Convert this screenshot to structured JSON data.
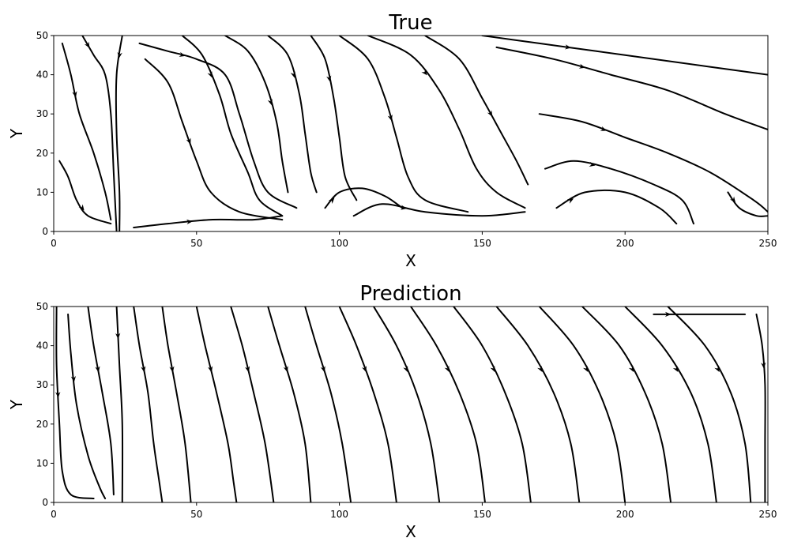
{
  "chart_data": [
    {
      "type": "streamplot",
      "title": "True",
      "xlabel": "X",
      "ylabel": "Y",
      "xlim": [
        0,
        250
      ],
      "ylim": [
        0,
        50
      ],
      "xticks": [
        0,
        50,
        100,
        150,
        200,
        250
      ],
      "yticks": [
        0,
        10,
        20,
        30,
        40,
        50
      ],
      "line_color": "#000000",
      "streamlines": [
        {
          "points": [
            [
              2,
              18
            ],
            [
              5,
              14
            ],
            [
              8,
              8
            ],
            [
              12,
              4
            ],
            [
              20,
              2
            ]
          ],
          "arrow_at": 3
        },
        {
          "points": [
            [
              3,
              48
            ],
            [
              6,
              40
            ],
            [
              9,
              30
            ],
            [
              14,
              20
            ],
            [
              18,
              10
            ],
            [
              20,
              3
            ]
          ],
          "arrow_at": 2
        },
        {
          "points": [
            [
              10,
              50
            ],
            [
              14,
              45
            ],
            [
              18,
              40
            ],
            [
              20,
              30
            ],
            [
              21,
              15
            ],
            [
              22,
              0
            ]
          ],
          "arrow_at": 1
        },
        {
          "points": [
            [
              24,
              50
            ],
            [
              22,
              40
            ],
            [
              22,
              25
            ],
            [
              23,
              10
            ],
            [
              23,
              0
            ]
          ],
          "arrow_at": 1
        },
        {
          "points": [
            [
              30,
              48
            ],
            [
              40,
              46
            ],
            [
              50,
              44
            ],
            [
              60,
              40
            ],
            [
              65,
              30
            ],
            [
              70,
              18
            ],
            [
              75,
              10
            ],
            [
              85,
              6
            ]
          ],
          "arrow_at": 2
        },
        {
          "points": [
            [
              32,
              44
            ],
            [
              40,
              38
            ],
            [
              45,
              28
            ],
            [
              50,
              18
            ],
            [
              55,
              10
            ],
            [
              65,
              5
            ],
            [
              80,
              3
            ]
          ],
          "arrow_at": 3
        },
        {
          "points": [
            [
              45,
              50
            ],
            [
              52,
              45
            ],
            [
              58,
              35
            ],
            [
              62,
              25
            ],
            [
              68,
              15
            ],
            [
              72,
              8
            ],
            [
              80,
              4
            ]
          ],
          "arrow_at": 2
        },
        {
          "points": [
            [
              60,
              50
            ],
            [
              68,
              46
            ],
            [
              74,
              38
            ],
            [
              78,
              28
            ],
            [
              80,
              18
            ],
            [
              82,
              10
            ]
          ],
          "arrow_at": 3
        },
        {
          "points": [
            [
              75,
              50
            ],
            [
              82,
              45
            ],
            [
              86,
              35
            ],
            [
              88,
              25
            ],
            [
              90,
              15
            ],
            [
              92,
              10
            ]
          ],
          "arrow_at": 2
        },
        {
          "points": [
            [
              90,
              50
            ],
            [
              95,
              44
            ],
            [
              98,
              34
            ],
            [
              100,
              24
            ],
            [
              102,
              14
            ],
            [
              106,
              8
            ]
          ],
          "arrow_at": 2
        },
        {
          "points": [
            [
              100,
              50
            ],
            [
              110,
              44
            ],
            [
              116,
              34
            ],
            [
              120,
              24
            ],
            [
              124,
              14
            ],
            [
              130,
              8
            ],
            [
              145,
              5
            ]
          ],
          "arrow_at": 3
        },
        {
          "points": [
            [
              110,
              50
            ],
            [
              125,
              45
            ],
            [
              135,
              36
            ],
            [
              142,
              26
            ],
            [
              148,
              16
            ],
            [
              155,
              10
            ],
            [
              165,
              6
            ]
          ],
          "arrow_at": 2
        },
        {
          "points": [
            [
              130,
              50
            ],
            [
              142,
              44
            ],
            [
              150,
              34
            ],
            [
              156,
              26
            ],
            [
              162,
              18
            ],
            [
              166,
              12
            ]
          ],
          "arrow_at": 3
        },
        {
          "points": [
            [
              150,
              50
            ],
            [
              170,
              48
            ],
            [
              190,
              46
            ],
            [
              210,
              44
            ],
            [
              230,
              42
            ],
            [
              250,
              40
            ]
          ],
          "arrow_at": 2
        },
        {
          "points": [
            [
              155,
              47
            ],
            [
              175,
              44
            ],
            [
              195,
              40
            ],
            [
              215,
              36
            ],
            [
              235,
              30
            ],
            [
              250,
              26
            ]
          ],
          "arrow_at": 2
        },
        {
          "points": [
            [
              170,
              30
            ],
            [
              185,
              28
            ],
            [
              200,
              24
            ],
            [
              215,
              20
            ],
            [
              230,
              15
            ],
            [
              245,
              8
            ],
            [
              250,
              5
            ]
          ],
          "arrow_at": 2
        },
        {
          "points": [
            [
              172,
              16
            ],
            [
              182,
              18
            ],
            [
              195,
              16
            ],
            [
              210,
              12
            ],
            [
              220,
              8
            ],
            [
              224,
              2
            ]
          ],
          "arrow_at": 2
        },
        {
          "points": [
            [
              176,
              6
            ],
            [
              186,
              10
            ],
            [
              200,
              10
            ],
            [
              212,
              6
            ],
            [
              218,
              2
            ]
          ],
          "arrow_at": 1
        },
        {
          "points": [
            [
              105,
              4
            ],
            [
              115,
              7
            ],
            [
              130,
              5
            ],
            [
              150,
              4
            ],
            [
              165,
              5
            ]
          ],
          "arrow_at": 2
        },
        {
          "points": [
            [
              95,
              6
            ],
            [
              100,
              10
            ],
            [
              108,
              11
            ],
            [
              116,
              9
            ],
            [
              122,
              6
            ]
          ],
          "arrow_at": 1
        },
        {
          "points": [
            [
              28,
              1
            ],
            [
              40,
              2
            ],
            [
              55,
              3
            ],
            [
              70,
              3
            ],
            [
              80,
              4
            ]
          ],
          "arrow_at": 2
        },
        {
          "points": [
            [
              236,
              10
            ],
            [
              240,
              6
            ],
            [
              246,
              4
            ],
            [
              250,
              4
            ]
          ],
          "arrow_at": 1
        }
      ]
    },
    {
      "type": "streamplot",
      "title": "Prediction",
      "xlabel": "X",
      "ylabel": "Y",
      "xlim": [
        0,
        250
      ],
      "ylim": [
        0,
        50
      ],
      "xticks": [
        0,
        50,
        100,
        150,
        200,
        250
      ],
      "yticks": [
        0,
        10,
        20,
        30,
        40,
        50
      ],
      "line_color": "#000000",
      "streamlines": [
        {
          "points": [
            [
              1,
              50
            ],
            [
              1,
              35
            ],
            [
              2,
              20
            ],
            [
              3,
              8
            ],
            [
              6,
              2
            ],
            [
              14,
              1
            ]
          ],
          "arrow_at": 2
        },
        {
          "points": [
            [
              5,
              48
            ],
            [
              6,
              38
            ],
            [
              8,
              25
            ],
            [
              12,
              12
            ],
            [
              16,
              4
            ],
            [
              18,
              1
            ]
          ],
          "arrow_at": 2
        },
        {
          "points": [
            [
              12,
              50
            ],
            [
              14,
              40
            ],
            [
              17,
              28
            ],
            [
              20,
              15
            ],
            [
              21,
              2
            ]
          ],
          "arrow_at": 2
        },
        {
          "points": [
            [
              22,
              50
            ],
            [
              23,
              35
            ],
            [
              24,
              20
            ],
            [
              24,
              0
            ]
          ],
          "arrow_at": 1
        },
        {
          "points": [
            [
              28,
              50
            ],
            [
              30,
              40
            ],
            [
              33,
              28
            ],
            [
              35,
              15
            ],
            [
              37,
              5
            ],
            [
              38,
              0
            ]
          ],
          "arrow_at": 2
        },
        {
          "points": [
            [
              38,
              50
            ],
            [
              40,
              40
            ],
            [
              43,
              28
            ],
            [
              46,
              15
            ],
            [
              48,
              0
            ]
          ],
          "arrow_at": 2
        },
        {
          "points": [
            [
              50,
              50
            ],
            [
              53,
              40
            ],
            [
              57,
              28
            ],
            [
              61,
              15
            ],
            [
              63,
              5
            ],
            [
              64,
              0
            ]
          ],
          "arrow_at": 2
        },
        {
          "points": [
            [
              62,
              50
            ],
            [
              66,
              40
            ],
            [
              70,
              28
            ],
            [
              74,
              15
            ],
            [
              77,
              0
            ]
          ],
          "arrow_at": 2
        },
        {
          "points": [
            [
              75,
              50
            ],
            [
              79,
              40
            ],
            [
              84,
              28
            ],
            [
              88,
              15
            ],
            [
              90,
              0
            ]
          ],
          "arrow_at": 2
        },
        {
          "points": [
            [
              88,
              50
            ],
            [
              92,
              40
            ],
            [
              97,
              28
            ],
            [
              101,
              15
            ],
            [
              104,
              0
            ]
          ],
          "arrow_at": 2
        },
        {
          "points": [
            [
              100,
              50
            ],
            [
              106,
              40
            ],
            [
              112,
              28
            ],
            [
              117,
              15
            ],
            [
              120,
              0
            ]
          ],
          "arrow_at": 2
        },
        {
          "points": [
            [
              112,
              50
            ],
            [
              120,
              40
            ],
            [
              127,
              28
            ],
            [
              132,
              15
            ],
            [
              135,
              0
            ]
          ],
          "arrow_at": 2
        },
        {
          "points": [
            [
              125,
              50
            ],
            [
              134,
              40
            ],
            [
              142,
              28
            ],
            [
              148,
              15
            ],
            [
              151,
              0
            ]
          ],
          "arrow_at": 2
        },
        {
          "points": [
            [
              140,
              50
            ],
            [
              150,
              40
            ],
            [
              158,
              28
            ],
            [
              164,
              15
            ],
            [
              167,
              0
            ]
          ],
          "arrow_at": 2
        },
        {
          "points": [
            [
              155,
              50
            ],
            [
              166,
              40
            ],
            [
              175,
              28
            ],
            [
              181,
              15
            ],
            [
              184,
              0
            ]
          ],
          "arrow_at": 2
        },
        {
          "points": [
            [
              170,
              50
            ],
            [
              182,
              40
            ],
            [
              191,
              28
            ],
            [
              197,
              15
            ],
            [
              200,
              0
            ]
          ],
          "arrow_at": 2
        },
        {
          "points": [
            [
              185,
              50
            ],
            [
              198,
              40
            ],
            [
              207,
              28
            ],
            [
              213,
              15
            ],
            [
              216,
              0
            ]
          ],
          "arrow_at": 2
        },
        {
          "points": [
            [
              200,
              50
            ],
            [
              213,
              40
            ],
            [
              223,
              28
            ],
            [
              229,
              15
            ],
            [
              232,
              0
            ]
          ],
          "arrow_at": 2
        },
        {
          "points": [
            [
              215,
              50
            ],
            [
              228,
              40
            ],
            [
              237,
              28
            ],
            [
              242,
              15
            ],
            [
              244,
              0
            ]
          ],
          "arrow_at": 2
        },
        {
          "points": [
            [
              210,
              48
            ],
            [
              220,
              48
            ],
            [
              232,
              48
            ],
            [
              242,
              48
            ]
          ],
          "arrow_at": 1
        },
        {
          "points": [
            [
              246,
              48
            ],
            [
              248,
              40
            ],
            [
              249,
              30
            ],
            [
              249,
              15
            ],
            [
              249,
              0
            ]
          ],
          "arrow_at": 2
        }
      ]
    }
  ]
}
